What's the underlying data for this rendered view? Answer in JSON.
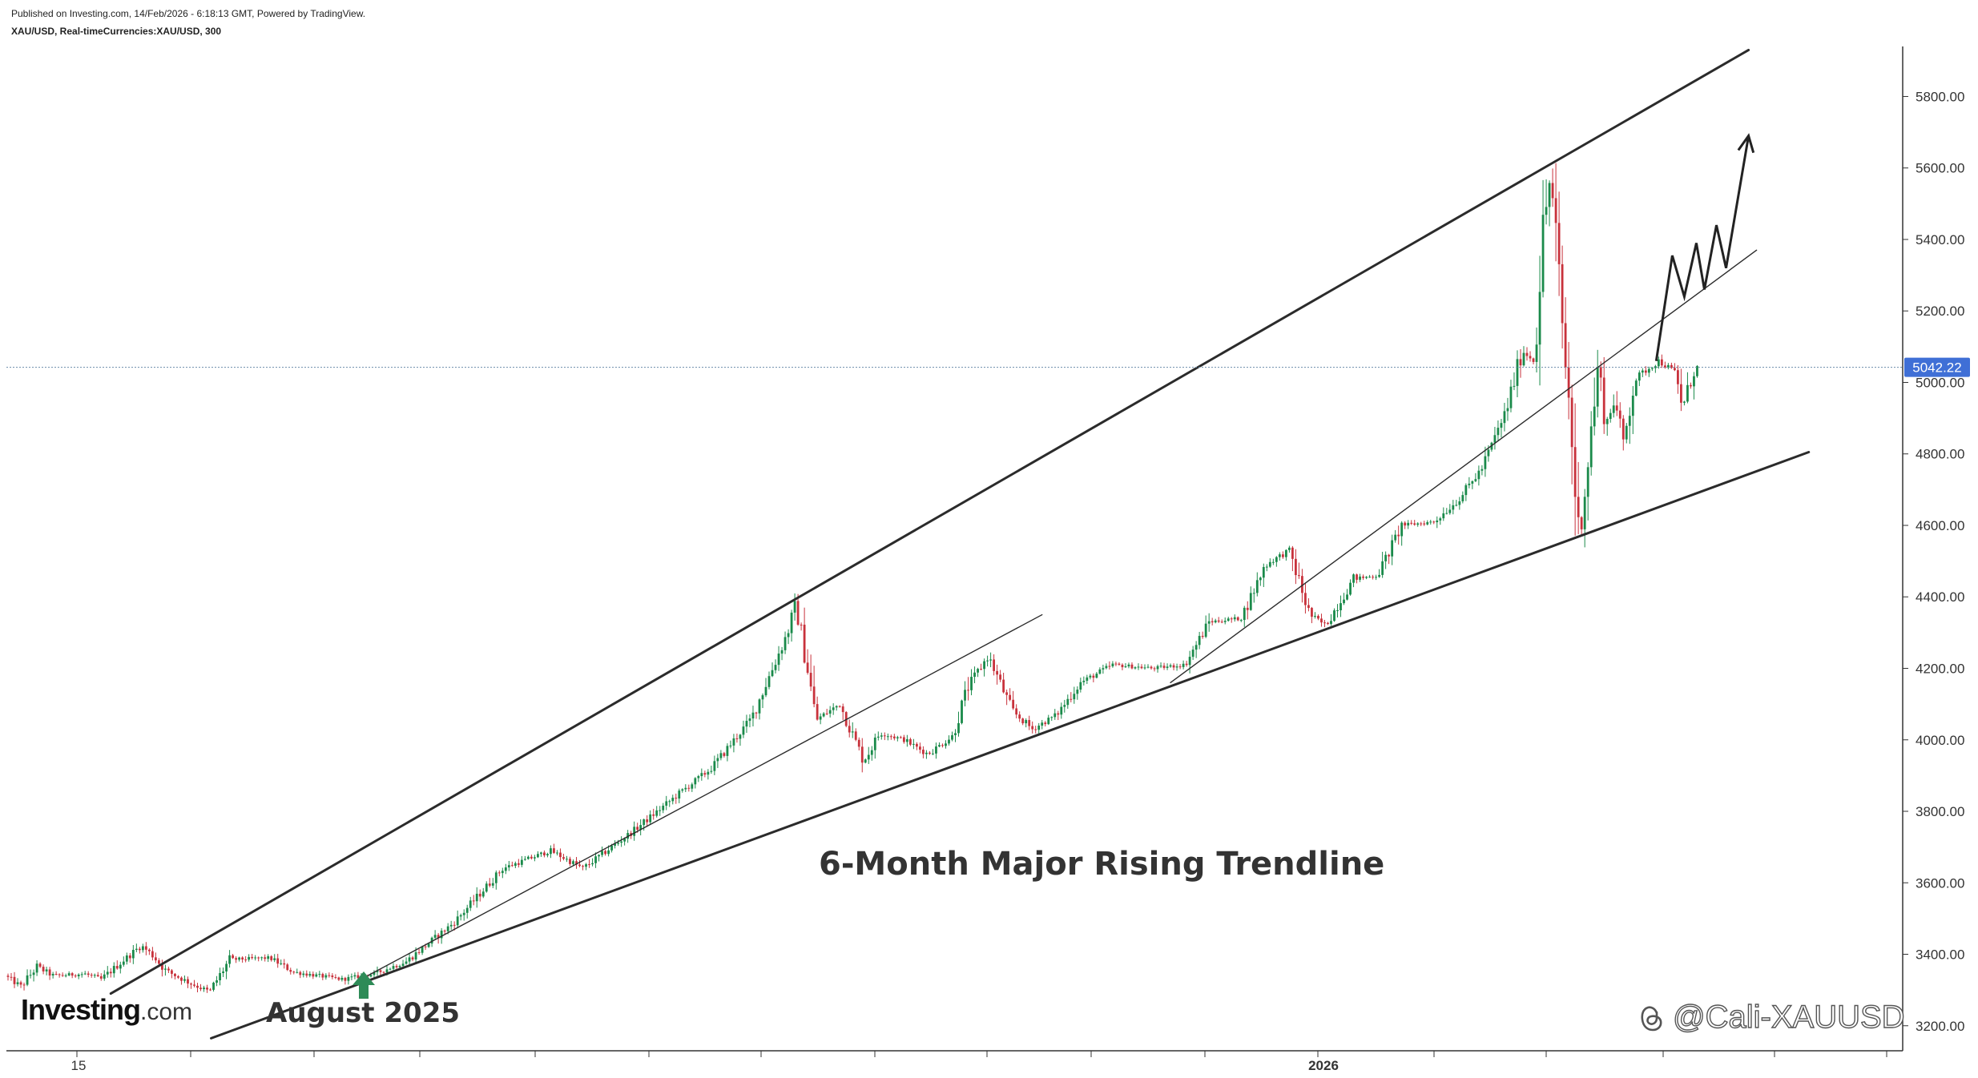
{
  "header": {
    "published": "Published on Investing.com, 14/Feb/2026 - 6:18:13 GMT, Powered by TradingView.",
    "symbol": "XAU/USD, Real-timeCurrencies:XAU/USD, 300"
  },
  "branding": {
    "logo_main": "Investing",
    "logo_suffix": ".com"
  },
  "watermark": {
    "handle": "@Cali-XAUUSD",
    "icon": "threads-icon"
  },
  "colors": {
    "up": "#1a8a4a",
    "down": "#c8323c",
    "price_badge": "#3f6fd6",
    "trendline": "#2b2b2b",
    "arrow_marker": "#2e8b57"
  },
  "chart_data": {
    "type": "candlestick",
    "instrument": "XAU/USD",
    "timeframe": "300",
    "ylim": [
      3130,
      5940
    ],
    "y_ticks": [
      3200,
      3400,
      3600,
      3800,
      4000,
      4200,
      4400,
      4600,
      4800,
      5000,
      5200,
      5400,
      5600,
      5800
    ],
    "y_tick_labels": [
      "3200.00",
      "3400.00",
      "3600.00",
      "3800.00",
      "4000.00",
      "4200.00",
      "4400.00",
      "4600.00",
      "4800.00",
      "5000.00",
      "5200.00",
      "5400.00",
      "5600.00",
      "5800.00"
    ],
    "x_labels": [
      "15",
      "2026"
    ],
    "last_price": 5042.22,
    "last_price_label": "5042.22",
    "price_path": [
      {
        "t": 0,
        "p": 3340
      },
      {
        "t": 20,
        "p": 3310
      },
      {
        "t": 40,
        "p": 3365
      },
      {
        "t": 60,
        "p": 3340
      },
      {
        "t": 100,
        "p": 3345
      },
      {
        "t": 120,
        "p": 3330
      },
      {
        "t": 170,
        "p": 3425
      },
      {
        "t": 185,
        "p": 3395
      },
      {
        "t": 200,
        "p": 3355
      },
      {
        "t": 230,
        "p": 3320
      },
      {
        "t": 255,
        "p": 3295
      },
      {
        "t": 280,
        "p": 3385
      },
      {
        "t": 330,
        "p": 3390
      },
      {
        "t": 360,
        "p": 3350
      },
      {
        "t": 420,
        "p": 3330
      },
      {
        "t": 460,
        "p": 3345
      },
      {
        "t": 500,
        "p": 3380
      },
      {
        "t": 560,
        "p": 3490
      },
      {
        "t": 620,
        "p": 3640
      },
      {
        "t": 680,
        "p": 3690
      },
      {
        "t": 720,
        "p": 3640
      },
      {
        "t": 780,
        "p": 3740
      },
      {
        "t": 840,
        "p": 3850
      },
      {
        "t": 880,
        "p": 3920
      },
      {
        "t": 930,
        "p": 4060
      },
      {
        "t": 975,
        "p": 4300
      },
      {
        "t": 985,
        "p": 4375
      },
      {
        "t": 1000,
        "p": 4200
      },
      {
        "t": 1010,
        "p": 4055
      },
      {
        "t": 1040,
        "p": 4100
      },
      {
        "t": 1070,
        "p": 3940
      },
      {
        "t": 1090,
        "p": 4020
      },
      {
        "t": 1120,
        "p": 4000
      },
      {
        "t": 1150,
        "p": 3960
      },
      {
        "t": 1180,
        "p": 4010
      },
      {
        "t": 1200,
        "p": 4150
      },
      {
        "t": 1225,
        "p": 4235
      },
      {
        "t": 1255,
        "p": 4080
      },
      {
        "t": 1280,
        "p": 4030
      },
      {
        "t": 1310,
        "p": 4070
      },
      {
        "t": 1340,
        "p": 4160
      },
      {
        "t": 1380,
        "p": 4210
      },
      {
        "t": 1430,
        "p": 4200
      },
      {
        "t": 1470,
        "p": 4210
      },
      {
        "t": 1500,
        "p": 4330
      },
      {
        "t": 1540,
        "p": 4340
      },
      {
        "t": 1570,
        "p": 4490
      },
      {
        "t": 1600,
        "p": 4530
      },
      {
        "t": 1625,
        "p": 4350
      },
      {
        "t": 1645,
        "p": 4320
      },
      {
        "t": 1680,
        "p": 4450
      },
      {
        "t": 1710,
        "p": 4460
      },
      {
        "t": 1740,
        "p": 4600
      },
      {
        "t": 1780,
        "p": 4610
      },
      {
        "t": 1810,
        "p": 4670
      },
      {
        "t": 1840,
        "p": 4760
      },
      {
        "t": 1870,
        "p": 4920
      },
      {
        "t": 1890,
        "p": 5090
      },
      {
        "t": 1905,
        "p": 5060
      },
      {
        "t": 1915,
        "p": 5400
      },
      {
        "t": 1925,
        "p": 5580
      },
      {
        "t": 1932,
        "p": 5400
      },
      {
        "t": 1942,
        "p": 5100
      },
      {
        "t": 1950,
        "p": 4900
      },
      {
        "t": 1960,
        "p": 4570
      },
      {
        "t": 1968,
        "p": 4700
      },
      {
        "t": 1985,
        "p": 5050
      },
      {
        "t": 1995,
        "p": 4880
      },
      {
        "t": 2005,
        "p": 4960
      },
      {
        "t": 2015,
        "p": 4820
      },
      {
        "t": 2030,
        "p": 5010
      },
      {
        "t": 2060,
        "p": 5060
      },
      {
        "t": 2080,
        "p": 5030
      },
      {
        "t": 2090,
        "p": 4930
      },
      {
        "t": 2105,
        "p": 5042
      }
    ],
    "annotations": [
      {
        "name": "trendline-label",
        "text": "6-Month Major Rising Trendline"
      },
      {
        "name": "start-label",
        "text": "August 2025"
      }
    ],
    "lines": [
      {
        "name": "upper-channel-line",
        "p1": {
          "t": 130,
          "p": 3290
        },
        "p2": {
          "t": 2170,
          "p": 5930
        },
        "style": "thick"
      },
      {
        "name": "major-rising-trendline",
        "p1": {
          "t": 255,
          "p": 3165
        },
        "p2": {
          "t": 2245,
          "p": 4805
        },
        "style": "thick"
      },
      {
        "name": "inner-support-line-1",
        "p1": {
          "t": 450,
          "p": 3340
        },
        "p2": {
          "t": 1290,
          "p": 4350
        },
        "style": "thin"
      },
      {
        "name": "inner-support-line-2",
        "p1": {
          "t": 1450,
          "p": 4160
        },
        "p2": {
          "t": 2180,
          "p": 5370
        },
        "style": "thin"
      }
    ],
    "projection": [
      {
        "t": 2055,
        "p": 5060
      },
      {
        "t": 2075,
        "p": 5355
      },
      {
        "t": 2090,
        "p": 5240
      },
      {
        "t": 2105,
        "p": 5390
      },
      {
        "t": 2115,
        "p": 5260
      },
      {
        "t": 2130,
        "p": 5440
      },
      {
        "t": 2142,
        "p": 5320
      },
      {
        "t": 2170,
        "p": 5690
      }
    ],
    "grid": false
  }
}
